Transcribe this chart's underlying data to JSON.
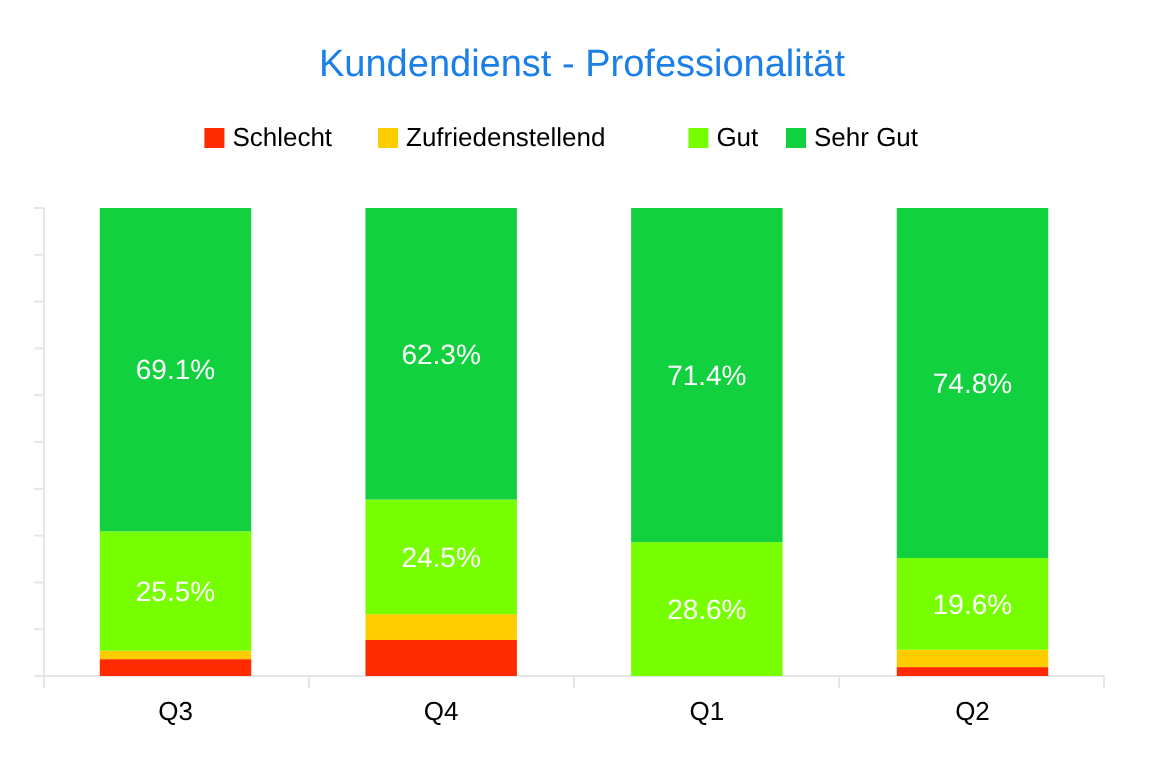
{
  "chart_data": {
    "type": "bar",
    "title": "Kundendienst - Professionalität",
    "categories": [
      "Q3",
      "Q4",
      "Q1",
      "Q2"
    ],
    "stacked": true,
    "legend": "top",
    "tick_labels": "x",
    "ylim": [
      0,
      100
    ],
    "yticks": [
      {
        "value": 0,
        "label": null
      },
      {
        "value": 10,
        "label": null
      },
      {
        "value": 20,
        "label": null
      },
      {
        "value": 30,
        "label": null
      },
      {
        "value": 40,
        "label": null
      },
      {
        "value": 50,
        "label": null
      },
      {
        "value": 60,
        "label": null
      },
      {
        "value": 70,
        "label": null
      },
      {
        "value": 80,
        "label": null
      },
      {
        "value": 90,
        "label": null
      },
      {
        "value": 100,
        "label": null
      }
    ],
    "series": [
      {
        "name": "Schlecht",
        "color": "#ff2a00",
        "values": [
          3.6,
          7.7,
          0,
          1.9
        ],
        "value_labels": [
          null,
          null,
          null,
          null
        ]
      },
      {
        "name": "Zufriedenstellend",
        "color": "#ffcc00",
        "values": [
          1.8,
          5.5,
          0,
          3.7
        ],
        "value_labels": [
          null,
          null,
          null,
          null
        ]
      },
      {
        "name": "Gut",
        "color": "#77ff00",
        "values": [
          25.5,
          24.5,
          28.6,
          19.6
        ],
        "value_labels": [
          "25.5%",
          "24.5%",
          "28.6%",
          "19.6%"
        ]
      },
      {
        "name": "Sehr Gut",
        "color": "#12d13f",
        "values": [
          69.1,
          62.3,
          71.4,
          74.8
        ],
        "value_labels": [
          "69.1%",
          "62.3%",
          "71.4%",
          "74.8%"
        ]
      }
    ]
  }
}
